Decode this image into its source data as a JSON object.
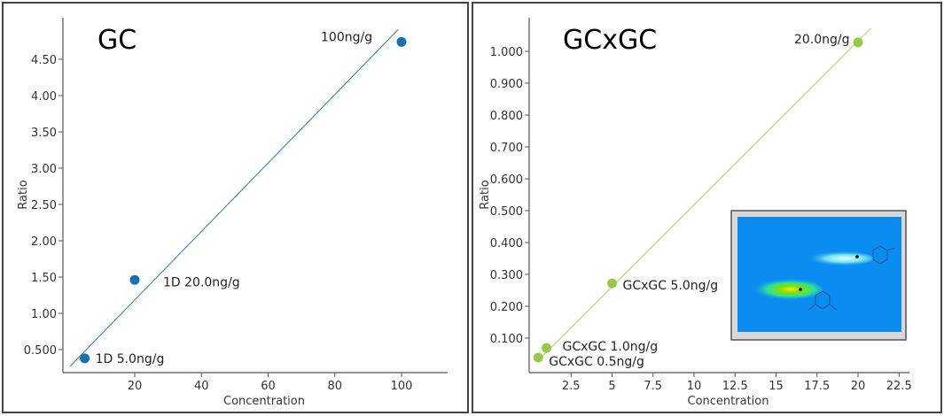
{
  "chart_data": [
    {
      "type": "scatter",
      "title": "GC",
      "xlabel": "Concentration",
      "ylabel": "Ratio",
      "xlim": [
        0,
        115
      ],
      "ylim": [
        0.2,
        5.0
      ],
      "xticks": [
        20,
        40,
        60,
        80,
        100
      ],
      "xtick_labels": [
        "20",
        "40",
        "60",
        "80",
        "100"
      ],
      "yticks": [
        0.5,
        1.0,
        1.5,
        2.0,
        2.5,
        3.0,
        3.5,
        4.0,
        4.5
      ],
      "ytick_labels": [
        "0.500",
        "1.00",
        "1.50",
        "2.00",
        "2.50",
        "3.00",
        "3.50",
        "4.00",
        "4.50"
      ],
      "grid": false,
      "color": "#1a6fae",
      "line_color": "#3b7b95",
      "points": [
        {
          "x": 5,
          "y": 0.38,
          "label": "1D 5.0ng/g"
        },
        {
          "x": 20,
          "y": 1.46,
          "label": "1D 20.0ng/g"
        },
        {
          "x": 100,
          "y": 4.74,
          "label": "100ng/g"
        }
      ],
      "fit_line": {
        "x": [
          0.6,
          99
        ],
        "y": [
          0.27,
          4.91
        ]
      }
    },
    {
      "type": "scatter",
      "title": "GCxGC",
      "xlabel": "Concentration",
      "ylabel": "Ratio",
      "xlim": [
        0,
        23.5
      ],
      "ylim": [
        0.0,
        1.1
      ],
      "xticks": [
        2.5,
        5,
        7.5,
        10,
        12.5,
        15,
        17.5,
        20,
        22.5
      ],
      "xtick_labels": [
        "2.5",
        "5",
        "7.5",
        "10",
        "12.5",
        "15",
        "17.5",
        "20",
        "22.5"
      ],
      "yticks": [
        0.1,
        0.2,
        0.3,
        0.4,
        0.5,
        0.6,
        0.7,
        0.8,
        0.9,
        1.0
      ],
      "ytick_labels": [
        "0.100",
        "0.200",
        "0.300",
        "0.400",
        "0.500",
        "0.600",
        "0.700",
        "0.800",
        "0.900",
        "1.000"
      ],
      "grid": false,
      "color": "#9cc84a",
      "line_color": "#bcc47f",
      "points": [
        {
          "x": 0.5,
          "y": 0.039,
          "label": "GCxGC 0.5ng/g"
        },
        {
          "x": 1.0,
          "y": 0.069,
          "label": "GCxGC 1.0ng/g"
        },
        {
          "x": 5.0,
          "y": 0.272,
          "label": "GCxGC 5.0ng/g"
        },
        {
          "x": 20.0,
          "y": 1.028,
          "label": "20.0ng/g"
        }
      ],
      "fit_line": {
        "x": [
          0.4,
          20.76
        ],
        "y": [
          0.025,
          1.072
        ]
      },
      "inset": "GCxGC contour plot image"
    }
  ]
}
